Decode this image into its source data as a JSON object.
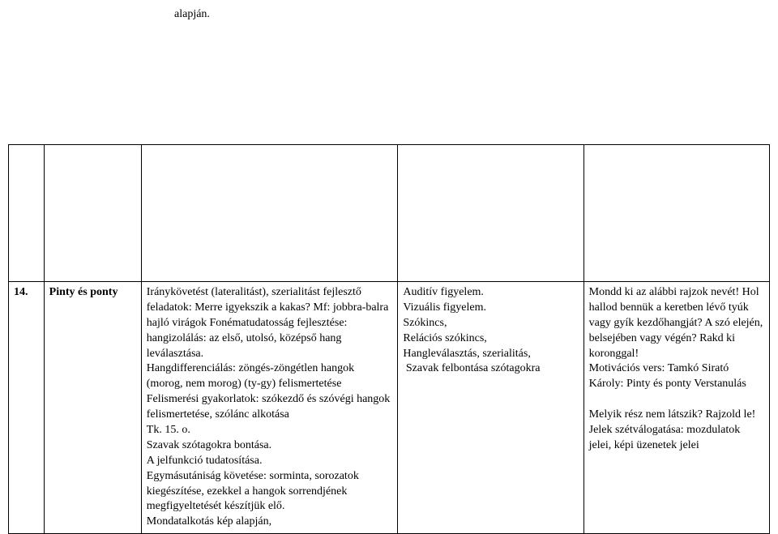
{
  "topFragment": "alapján.",
  "row": {
    "num": "14.",
    "title": "Pinty és ponty",
    "colA": "Iránykövetést (lateralitást), szerialitást fejlesztő feladatok: Merre igyekszik a kakas? Mf: jobbra-balra hajló virágok Fonématudatosság fejlesztése: hangizolálás: az első, utolsó, középső hang leválasztása.\nHangdifferenciálás: zöngés-zöngétlen hangok (morog, nem morog) (ty-gy) felismertetése\nFelismerési gyakorlatok: szókezdő és szóvégi hangok felismertetése, szólánc alkotása\nTk. 15. o.\nSzavak szótagokra bontása.\nA jelfunkció tudatosítása.\nEgymásutániság követése: sorminta, sorozatok kiegészítése, ezekkel a hangok sorrendjének megfigyeltetését készítjük elő.\nMondatalkotás kép alapján,",
    "colB": "Auditív figyelem.\nVizuális figyelem.\nSzókincs,\nRelációs szókincs,\nHangleválasztás, szerialitás,\n Szavak felbontása szótagokra",
    "colC": "Mondd ki az alábbi rajzok nevét! Hol hallod bennük a keretben lévő tyúk vagy gyík kezdőhangját? A szó elején, belsejében vagy végén? Rakd ki\nkoronggal!\nMotivációs vers: Tamkó Sirató Károly: Pinty és ponty Verstanulás\n\nMelyik rész nem látszik? Rajzold le!\nJelek szétválogatása: mozdulatok jelei, képi üzenetek jelei"
  },
  "style": {
    "fontFamily": "Times New Roman",
    "fontSizePx": 14,
    "textColor": "#000000",
    "borderColor": "#000000",
    "backgroundColor": "#ffffff"
  }
}
